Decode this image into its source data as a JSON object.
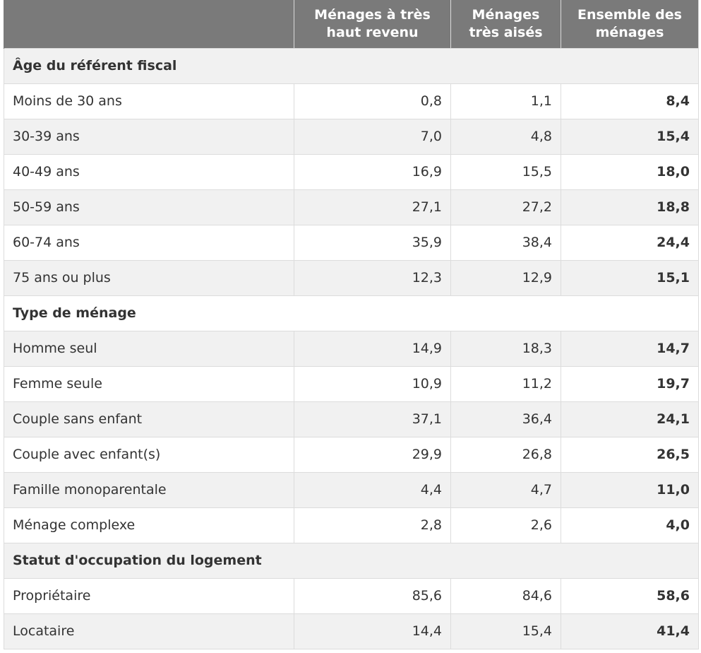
{
  "table": {
    "headers": [
      "",
      "Ménages à très haut revenu",
      "Ménages très aisés",
      "Ensemble des ménages"
    ],
    "sections": [
      {
        "title": "Âge du référent fiscal",
        "rows": [
          [
            "Moins de 30 ans",
            "0,8",
            "1,1",
            "8,4"
          ],
          [
            "30-39 ans",
            "7,0",
            "4,8",
            "15,4"
          ],
          [
            "40-49 ans",
            "16,9",
            "15,5",
            "18,0"
          ],
          [
            "50-59 ans",
            "27,1",
            "27,2",
            "18,8"
          ],
          [
            "60-74 ans",
            "35,9",
            "38,4",
            "24,4"
          ],
          [
            "75 ans ou plus",
            "12,3",
            "12,9",
            "15,1"
          ]
        ]
      },
      {
        "title": "Type de ménage",
        "rows": [
          [
            "Homme seul",
            "14,9",
            "18,3",
            "14,7"
          ],
          [
            "Femme seule",
            "10,9",
            "11,2",
            "19,7"
          ],
          [
            "Couple sans enfant",
            "37,1",
            "36,4",
            "24,1"
          ],
          [
            "Couple avec enfant(s)",
            "29,9",
            "26,8",
            "26,5"
          ],
          [
            "Famille monoparentale",
            "4,4",
            "4,7",
            "11,0"
          ],
          [
            "Ménage complexe",
            "2,8",
            "2,6",
            "4,0"
          ]
        ]
      },
      {
        "title": "Statut d'occupation du logement",
        "rows": [
          [
            "Propriétaire",
            "85,6",
            "84,6",
            "58,6"
          ],
          [
            "Locataire",
            "14,4",
            "15,4",
            "41,4"
          ]
        ]
      }
    ]
  }
}
